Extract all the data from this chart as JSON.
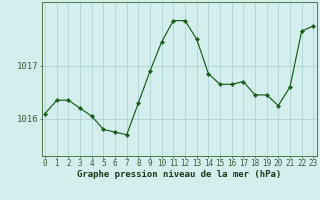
{
  "hours": [
    0,
    1,
    2,
    3,
    4,
    5,
    6,
    7,
    8,
    9,
    10,
    11,
    12,
    13,
    14,
    15,
    16,
    17,
    18,
    19,
    20,
    21,
    22,
    23
  ],
  "pressure": [
    1016.1,
    1016.35,
    1016.35,
    1016.2,
    1016.05,
    1015.8,
    1015.75,
    1015.7,
    1016.3,
    1016.9,
    1017.45,
    1017.85,
    1017.85,
    1017.5,
    1016.85,
    1016.65,
    1016.65,
    1016.7,
    1016.45,
    1016.45,
    1016.25,
    1016.6,
    1017.65,
    1017.75
  ],
  "line_color": "#1a5c1a",
  "marker": "D",
  "marker_size": 2.2,
  "bg_color": "#d4eeed",
  "grid_color": "#aacfcf",
  "axis_line_color": "#4a7a4a",
  "xlabel": "Graphe pression niveau de la mer (hPa)",
  "xlabel_fontsize": 6.5,
  "ylabel_ticks": [
    1016,
    1017
  ],
  "ytick_fontsize": 6.5,
  "xtick_fontsize": 5.5,
  "ylim_min": 1015.3,
  "ylim_max": 1018.2,
  "xlim_min": -0.3,
  "xlim_max": 23.3
}
